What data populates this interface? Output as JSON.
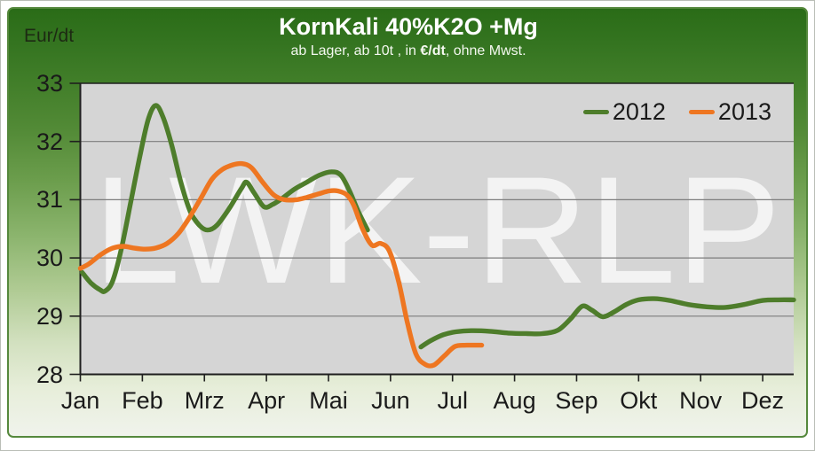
{
  "header": {
    "title": "KornKali 40%K2O +Mg",
    "subtitle_pre": "ab Lager, ab 10t , in ",
    "subtitle_bold": "€/dt",
    "subtitle_post": ", ohne Mwst."
  },
  "y_axis_unit_label": "Eur/dt",
  "watermark": "LWK-RLP",
  "legend": [
    {
      "label": "2012",
      "color": "#4e7d2b"
    },
    {
      "label": "2013",
      "color": "#ee7621"
    }
  ],
  "chart_data": {
    "type": "line",
    "title": "KornKali 40%K2O +Mg",
    "subtitle": "ab Lager, ab 10t , in €/dt, ohne Mwst.",
    "ylabel": "Eur/dt",
    "ylim": [
      28,
      33
    ],
    "y_ticks": [
      33,
      32,
      31,
      30,
      29,
      28
    ],
    "x_tick_labels": [
      "Jan",
      "Feb",
      "Mrz",
      "Apr",
      "Mai",
      "Jun",
      "Jul",
      "Aug",
      "Sep",
      "Okt",
      "Nov",
      "Dez"
    ],
    "x_range_months": [
      0,
      11.5
    ],
    "grid": true,
    "legend_position": "top-right",
    "plot_bg_color": "#d5d5d5",
    "gridline_color": "#7d7d7d",
    "axis_color": "#1f1f1f",
    "series": [
      {
        "name": "2012",
        "color": "#4e7d2b",
        "segments": [
          [
            [
              0.03,
              29.75
            ],
            [
              0.17,
              29.57
            ],
            [
              0.32,
              29.45
            ],
            [
              0.4,
              29.43
            ],
            [
              0.52,
              29.6
            ],
            [
              0.66,
              30.15
            ],
            [
              0.82,
              31.0
            ],
            [
              0.97,
              31.8
            ],
            [
              1.1,
              32.4
            ],
            [
              1.22,
              32.62
            ],
            [
              1.34,
              32.4
            ],
            [
              1.47,
              31.95
            ],
            [
              1.62,
              31.3
            ],
            [
              1.77,
              30.8
            ],
            [
              1.92,
              30.56
            ],
            [
              2.05,
              30.48
            ],
            [
              2.2,
              30.56
            ],
            [
              2.4,
              30.85
            ],
            [
              2.6,
              31.2
            ],
            [
              2.68,
              31.3
            ],
            [
              2.8,
              31.12
            ],
            [
              2.96,
              30.88
            ],
            [
              3.1,
              30.92
            ],
            [
              3.25,
              31.02
            ],
            [
              3.45,
              31.18
            ],
            [
              3.65,
              31.3
            ],
            [
              3.85,
              31.42
            ],
            [
              4.05,
              31.48
            ],
            [
              4.2,
              31.42
            ],
            [
              4.34,
              31.15
            ],
            [
              4.48,
              30.8
            ],
            [
              4.63,
              30.48
            ]
          ],
          [
            [
              5.49,
              28.47
            ],
            [
              5.65,
              28.58
            ],
            [
              5.85,
              28.68
            ],
            [
              6.05,
              28.73
            ],
            [
              6.3,
              28.75
            ],
            [
              6.6,
              28.74
            ],
            [
              6.9,
              28.71
            ],
            [
              7.2,
              28.7
            ],
            [
              7.45,
              28.7
            ],
            [
              7.7,
              28.76
            ],
            [
              7.9,
              28.95
            ],
            [
              8.09,
              29.17
            ],
            [
              8.25,
              29.1
            ],
            [
              8.42,
              28.99
            ],
            [
              8.6,
              29.07
            ],
            [
              8.8,
              29.2
            ],
            [
              9.0,
              29.28
            ],
            [
              9.25,
              29.3
            ],
            [
              9.5,
              29.27
            ],
            [
              9.8,
              29.2
            ],
            [
              10.1,
              29.16
            ],
            [
              10.4,
              29.15
            ],
            [
              10.7,
              29.2
            ],
            [
              11.0,
              29.27
            ],
            [
              11.25,
              29.28
            ],
            [
              11.5,
              29.28
            ]
          ]
        ]
      },
      {
        "name": "2013",
        "color": "#ee7621",
        "segments": [
          [
            [
              0.0,
              29.82
            ],
            [
              0.14,
              29.9
            ],
            [
              0.32,
              30.05
            ],
            [
              0.5,
              30.16
            ],
            [
              0.69,
              30.2
            ],
            [
              0.86,
              30.17
            ],
            [
              1.05,
              30.15
            ],
            [
              1.22,
              30.17
            ],
            [
              1.4,
              30.25
            ],
            [
              1.58,
              30.42
            ],
            [
              1.75,
              30.68
            ],
            [
              1.93,
              31.0
            ],
            [
              2.12,
              31.35
            ],
            [
              2.29,
              31.52
            ],
            [
              2.46,
              31.6
            ],
            [
              2.61,
              31.62
            ],
            [
              2.76,
              31.55
            ],
            [
              2.94,
              31.3
            ],
            [
              3.12,
              31.08
            ],
            [
              3.29,
              31.0
            ],
            [
              3.48,
              31.0
            ],
            [
              3.65,
              31.04
            ],
            [
              3.84,
              31.1
            ],
            [
              4.01,
              31.15
            ],
            [
              4.15,
              31.15
            ],
            [
              4.3,
              31.08
            ],
            [
              4.41,
              30.9
            ],
            [
              4.55,
              30.5
            ],
            [
              4.7,
              30.22
            ],
            [
              4.84,
              30.25
            ],
            [
              4.98,
              30.12
            ],
            [
              5.13,
              29.6
            ],
            [
              5.27,
              28.9
            ],
            [
              5.41,
              28.35
            ],
            [
              5.56,
              28.17
            ],
            [
              5.7,
              28.16
            ],
            [
              5.87,
              28.32
            ],
            [
              6.04,
              28.48
            ],
            [
              6.23,
              28.5
            ],
            [
              6.47,
              28.5
            ]
          ]
        ]
      }
    ]
  }
}
